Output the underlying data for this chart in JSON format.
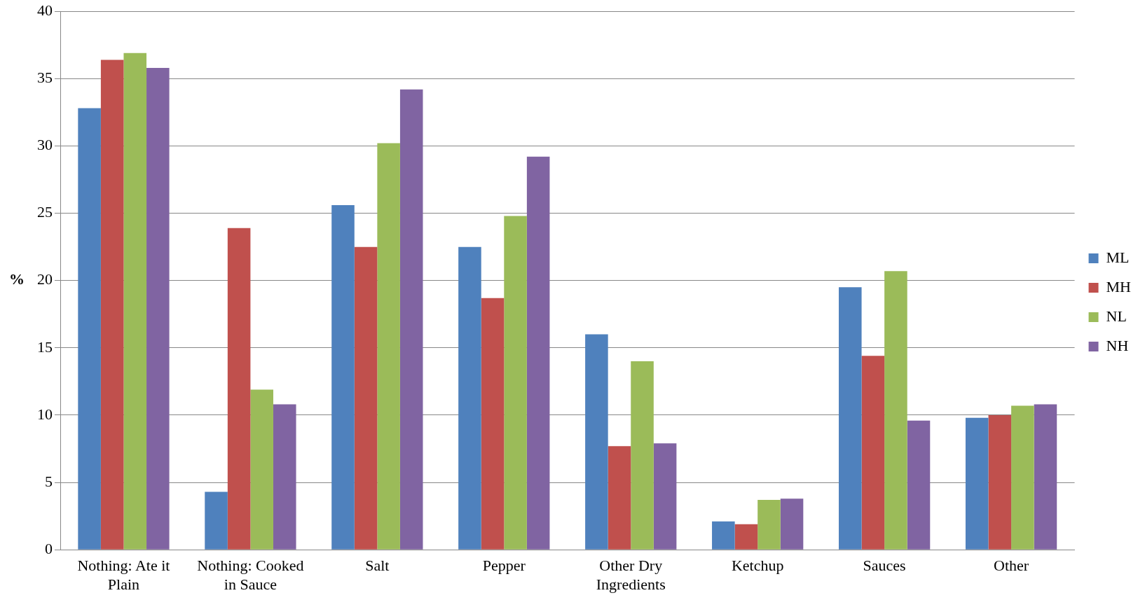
{
  "chart_data": {
    "type": "bar",
    "ylabel": "%",
    "categories": [
      "Nothing: Ate it Plain",
      "Nothing: Cooked in Sauce",
      "Salt",
      "Pepper",
      "Other Dry Ingredients",
      "Ketchup",
      "Sauces",
      "Other"
    ],
    "series": [
      {
        "name": "ML",
        "color": "#4f81bd",
        "values": [
          32.8,
          4.3,
          25.6,
          22.5,
          16.0,
          2.1,
          19.5,
          9.8
        ]
      },
      {
        "name": "MH",
        "color": "#c0504d",
        "values": [
          36.4,
          23.9,
          22.5,
          18.7,
          7.7,
          1.9,
          14.4,
          10.0
        ]
      },
      {
        "name": "NL",
        "color": "#9bbb59",
        "values": [
          36.9,
          11.9,
          30.2,
          24.8,
          14.0,
          3.7,
          20.7,
          10.7
        ]
      },
      {
        "name": "NH",
        "color": "#8064a2",
        "values": [
          35.8,
          10.8,
          34.2,
          29.2,
          7.9,
          3.8,
          9.6,
          10.8
        ]
      }
    ],
    "ylim": [
      0,
      40
    ],
    "yticks": [
      0,
      5,
      10,
      15,
      20,
      25,
      30,
      35,
      40
    ],
    "grid": "y",
    "legend": "right"
  }
}
